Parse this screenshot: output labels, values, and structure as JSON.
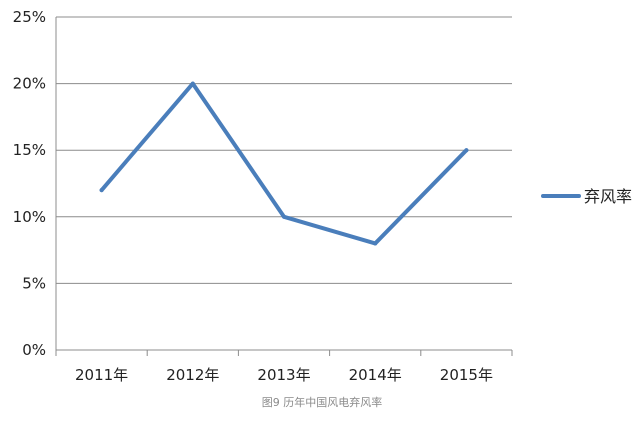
{
  "chart_data": {
    "type": "line",
    "categories": [
      "2011年",
      "2012年",
      "2013年",
      "2014年",
      "2015年"
    ],
    "series": [
      {
        "name": "弃风率",
        "values": [
          12,
          20,
          10,
          8,
          15
        ],
        "color": "#4a7ebb"
      }
    ],
    "y_ticks": [
      "0%",
      "5%",
      "10%",
      "15%",
      "20%",
      "25%"
    ],
    "ylim": [
      0,
      25
    ],
    "grid": true,
    "legend": "right",
    "caption": "图9 历年中国风电弃风率"
  }
}
